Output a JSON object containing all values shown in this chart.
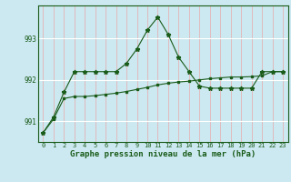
{
  "hours": [
    0,
    1,
    2,
    3,
    4,
    5,
    6,
    7,
    8,
    9,
    10,
    11,
    12,
    13,
    14,
    15,
    16,
    17,
    18,
    19,
    20,
    21,
    22,
    23
  ],
  "line1_y": [
    990.72,
    991.1,
    991.7,
    992.2,
    992.2,
    992.2,
    992.2,
    992.2,
    992.4,
    992.75,
    993.2,
    993.52,
    993.1,
    992.55,
    992.2,
    991.85,
    991.8,
    991.8,
    991.8,
    991.8,
    991.8,
    992.2,
    992.2,
    992.2
  ],
  "line2_y": [
    990.72,
    991.05,
    991.55,
    991.6,
    991.6,
    991.62,
    991.65,
    991.68,
    991.72,
    991.77,
    991.82,
    991.88,
    991.92,
    991.95,
    991.97,
    992.0,
    992.03,
    992.05,
    992.07,
    992.07,
    992.08,
    992.1,
    992.2,
    992.2
  ],
  "line_color": "#1a5c1a",
  "bg_color": "#cce8f0",
  "grid_color_v": "#e8aaaa",
  "grid_color_h": "#ffffff",
  "xlabel": "Graphe pression niveau de la mer (hPa)",
  "ylim": [
    990.5,
    993.8
  ],
  "yticks": [
    991,
    992,
    993
  ],
  "xlim": [
    -0.5,
    23.5
  ],
  "xlabel_fontsize": 6.5,
  "tick_fontsize": 5.0
}
